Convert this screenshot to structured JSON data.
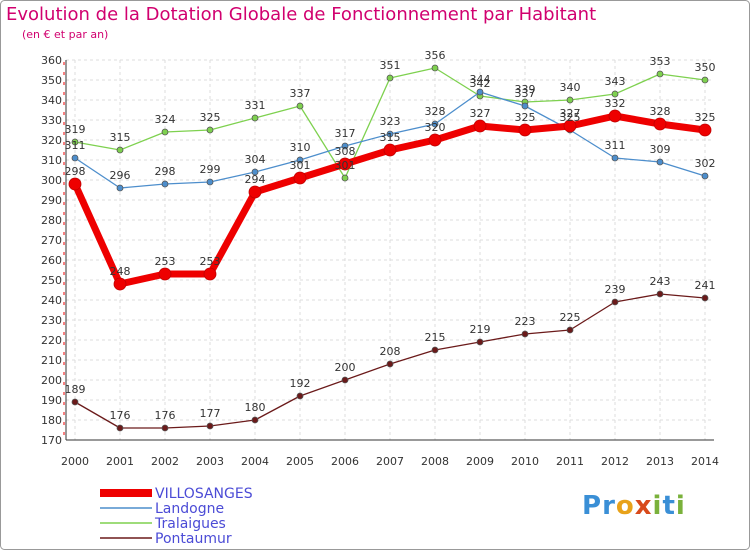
{
  "title": "Evolution de la Dotation Globale de Fonctionnement par Habitant",
  "subtitle": "(en € et par an)",
  "logo": {
    "letters": [
      "P",
      "r",
      "o",
      "x",
      "i",
      "t",
      "i"
    ],
    "colors": [
      "#3a8fd6",
      "#3a8fd6",
      "#e8a21a",
      "#d84a1b",
      "#7ab13b",
      "#3a8fd6",
      "#7ab13b"
    ]
  },
  "chart_data": {
    "type": "line",
    "x": [
      "2000",
      "2001",
      "2002",
      "2003",
      "2004",
      "2005",
      "2006",
      "2007",
      "2008",
      "2009",
      "2010",
      "2011",
      "2012",
      "2013",
      "2014"
    ],
    "ylim": [
      170,
      360
    ],
    "yticks": [
      170,
      180,
      190,
      200,
      210,
      220,
      230,
      240,
      250,
      260,
      270,
      280,
      290,
      300,
      310,
      320,
      330,
      340,
      350,
      360
    ],
    "grid": true,
    "legend_position": "bottom-left",
    "series": [
      {
        "name": "VILLOSANGES",
        "color": "#ee0000",
        "values": [
          298,
          248,
          253,
          253,
          294,
          301,
          308,
          315,
          320,
          327,
          325,
          327,
          332,
          328,
          325
        ]
      },
      {
        "name": "Landogne",
        "color": "#4d8ecc",
        "values": [
          311,
          296,
          298,
          299,
          304,
          310,
          317,
          323,
          328,
          344,
          337,
          325,
          311,
          309,
          302
        ]
      },
      {
        "name": "Tralaigues",
        "color": "#7ed14f",
        "values": [
          319,
          315,
          324,
          325,
          331,
          337,
          301,
          351,
          356,
          342,
          339,
          340,
          343,
          353,
          350
        ]
      },
      {
        "name": "Pontaumur",
        "color": "#6b1a1a",
        "values": [
          189,
          176,
          176,
          177,
          180,
          192,
          200,
          208,
          215,
          219,
          223,
          225,
          239,
          243,
          241
        ]
      }
    ]
  }
}
